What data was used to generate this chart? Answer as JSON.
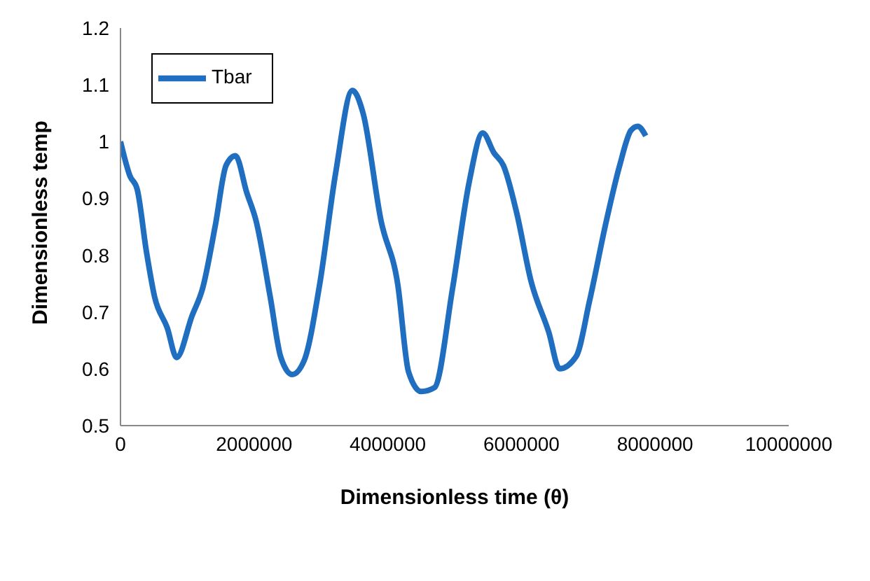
{
  "chart_data": {
    "type": "line",
    "xlabel": "Dimensionless time (θ)",
    "ylabel": "Dimensionless temp",
    "x": [
      0,
      140000,
      250000,
      390000,
      510000,
      700000,
      840000,
      1070000,
      1230000,
      1420000,
      1580000,
      1720000,
      1890000,
      2030000,
      2240000,
      2400000,
      2570000,
      2750000,
      2980000,
      3220000,
      3470000,
      3630000,
      3900000,
      4150000,
      4310000,
      4500000,
      4700000,
      4970000,
      5220000,
      5420000,
      5590000,
      5730000,
      5930000,
      6140000,
      6410000,
      6570000,
      6820000,
      7020000,
      7270000,
      7470000,
      7640000,
      7740000,
      7860000
    ],
    "series": [
      {
        "name": "Tbar",
        "color": "#1f6ebf",
        "values": [
          1.0,
          0.94,
          0.916,
          0.805,
          0.727,
          0.672,
          0.62,
          0.693,
          0.742,
          0.853,
          0.958,
          0.975,
          0.91,
          0.86,
          0.727,
          0.62,
          0.59,
          0.615,
          0.748,
          0.945,
          1.09,
          1.05,
          0.86,
          0.748,
          0.595,
          0.56,
          0.567,
          0.742,
          0.93,
          1.015,
          0.98,
          0.958,
          0.874,
          0.756,
          0.664,
          0.6,
          0.622,
          0.72,
          0.86,
          0.958,
          1.02,
          1.027,
          1.01
        ]
      }
    ],
    "xlim": [
      0,
      10000000
    ],
    "xticks": [
      0,
      2000000,
      4000000,
      6000000,
      8000000,
      10000000
    ],
    "ylim": [
      0.5,
      1.2
    ],
    "yticks": [
      0.5,
      0.6,
      0.7,
      0.8,
      0.9,
      1,
      1.1,
      1.2
    ],
    "grid": false,
    "legend": "top left",
    "marker": "none",
    "line_style": "solid"
  }
}
